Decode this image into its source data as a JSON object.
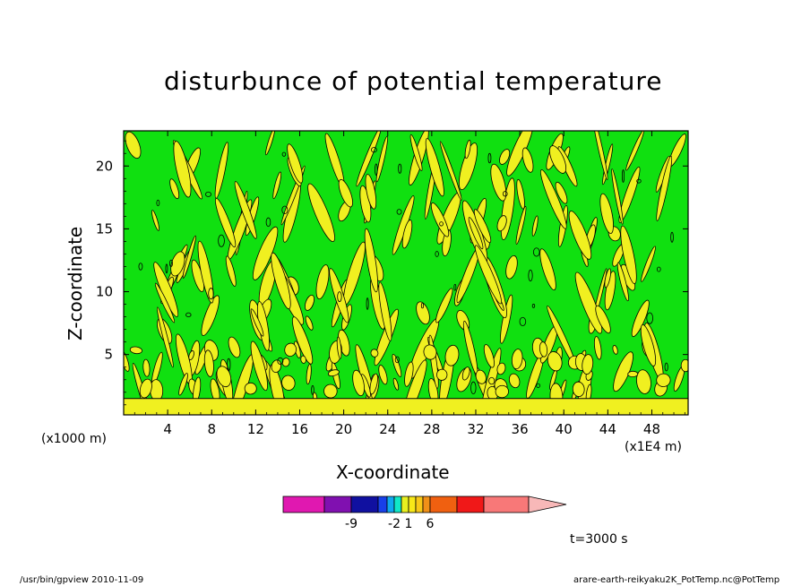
{
  "chart_data": {
    "type": "heatmap",
    "title": "disturbunce of potential temperature",
    "xlabel": "X-coordinate",
    "ylabel": "Z-coordinate",
    "x_unit_label": "(x1000 m)",
    "x_scale_label": "(x1E4 m)",
    "x_ticks": [
      "4",
      "8",
      "12",
      "16",
      "20",
      "24",
      "28",
      "32",
      "36",
      "40",
      "44",
      "48"
    ],
    "x_range": [
      0,
      51.3
    ],
    "y_ticks": [
      "5",
      "10",
      "15",
      "20"
    ],
    "y_range": [
      0.2,
      22.8
    ],
    "surface_band_top": 1.5,
    "colorbar": {
      "tick_labels": [
        "-9",
        "-2",
        "1",
        "6"
      ],
      "colors": [
        "#e018b0",
        "#8010b0",
        "#1010a0",
        "#1840e8",
        "#10a8f0",
        "#10e8c8",
        "#e8f020",
        "#f8e818",
        "#f8c818",
        "#f09018",
        "#f06010",
        "#f01818",
        "#f87878",
        "#f8b8b8"
      ]
    },
    "time_label": "t=3000 s",
    "colors": {
      "background": "#10e010",
      "positive_band": "#f0f020",
      "contour": "#000000"
    }
  },
  "footer": {
    "left": "/usr/bin/gpview   2010-11-09",
    "right": "arare-earth-reikyaku2K_PotTemp.nc@PotTemp"
  }
}
